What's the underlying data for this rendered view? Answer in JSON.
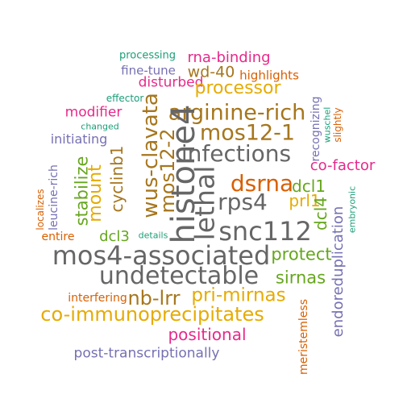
{
  "colors": {
    "teal": "#1b9e77",
    "orange": "#d95f02",
    "purple": "#7570b3",
    "magenta": "#e7298a",
    "green": "#66a61e",
    "gold": "#e6ab02",
    "brown": "#a6761d",
    "gray": "#666666"
  },
  "words": [
    {
      "text": "processing",
      "color": "teal"
    },
    {
      "text": "rna-binding",
      "color": "magenta"
    },
    {
      "text": "fine-tune",
      "color": "purple"
    },
    {
      "text": "wd-40",
      "color": "brown"
    },
    {
      "text": "highlights",
      "color": "orange"
    },
    {
      "text": "disturbed",
      "color": "magenta"
    },
    {
      "text": "processor",
      "color": "gold"
    },
    {
      "text": "effector",
      "color": "teal"
    },
    {
      "text": "modifier",
      "color": "magenta"
    },
    {
      "text": "changed",
      "color": "teal"
    },
    {
      "text": "arginine-rich",
      "color": "brown"
    },
    {
      "text": "mos12-1",
      "color": "brown"
    },
    {
      "text": "initiating",
      "color": "purple"
    },
    {
      "text": "infections",
      "color": "gray"
    },
    {
      "text": "co-factor",
      "color": "magenta"
    },
    {
      "text": "dsrna",
      "color": "orange"
    },
    {
      "text": "dcl1",
      "color": "green"
    },
    {
      "text": "rps4",
      "color": "gray"
    },
    {
      "text": "prl1",
      "color": "gold"
    },
    {
      "text": "snc112",
      "color": "gray"
    },
    {
      "text": "entire",
      "color": "orange"
    },
    {
      "text": "dcl3",
      "color": "green"
    },
    {
      "text": "details",
      "color": "teal"
    },
    {
      "text": "mos4-associated",
      "color": "gray"
    },
    {
      "text": "protect",
      "color": "green"
    },
    {
      "text": "undetectable",
      "color": "gray"
    },
    {
      "text": "sirnas",
      "color": "green"
    },
    {
      "text": "interfering",
      "color": "orange"
    },
    {
      "text": "nb-lrr",
      "color": "brown"
    },
    {
      "text": "pri-mirnas",
      "color": "gold"
    },
    {
      "text": "co-immunoprecipitates",
      "color": "gold"
    },
    {
      "text": "positional",
      "color": "magenta"
    },
    {
      "text": "post-transcriptionally",
      "color": "purple"
    },
    {
      "text": "wus-clavata",
      "color": "brown"
    },
    {
      "text": "mos12-2",
      "color": "brown"
    },
    {
      "text": "histone4",
      "color": "gray"
    },
    {
      "text": "lethal",
      "color": "gray"
    },
    {
      "text": "cyclinb1",
      "color": "brown"
    },
    {
      "text": "mount",
      "color": "gold"
    },
    {
      "text": "stabilize",
      "color": "green"
    },
    {
      "text": "leucine-rich",
      "color": "purple"
    },
    {
      "text": "localizes",
      "color": "orange"
    },
    {
      "text": "recognizing",
      "color": "purple"
    },
    {
      "text": "wuschel",
      "color": "teal"
    },
    {
      "text": "slightly",
      "color": "orange"
    },
    {
      "text": "dcl4",
      "color": "green"
    },
    {
      "text": "embryonic",
      "color": "teal"
    },
    {
      "text": "endoreduplication",
      "color": "purple"
    },
    {
      "text": "meristemless",
      "color": "orange"
    }
  ]
}
